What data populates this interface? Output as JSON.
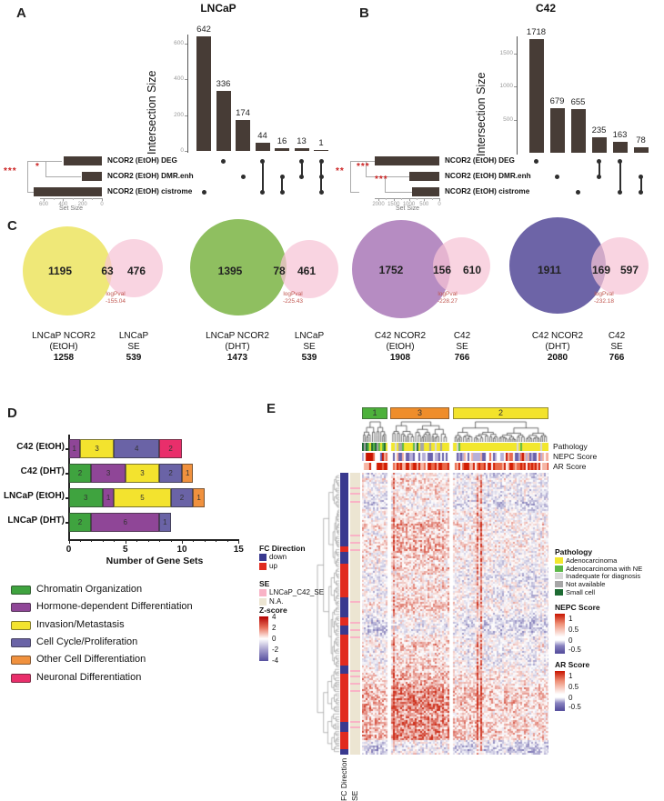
{
  "chart_data": [
    {
      "type": "upset",
      "panel": "A",
      "title": "LNCaP",
      "ylabel": "Intersection Size",
      "yticks": [
        0,
        200,
        400,
        600
      ],
      "set_axis_label": "Set Size",
      "set_axis_ticks": [
        600,
        400,
        200,
        0
      ],
      "sets": [
        {
          "name": "NCOR2 (EtOH) DEG",
          "size": 394
        },
        {
          "name": "NCOR2 (EtOH) DMR.enh",
          "size": 204
        },
        {
          "name": "NCOR2 (EtOH) cistrome",
          "size": 703
        }
      ],
      "intersections": [
        {
          "sets": [
            2
          ],
          "size": 642
        },
        {
          "sets": [
            0
          ],
          "size": 336
        },
        {
          "sets": [
            1
          ],
          "size": 174
        },
        {
          "sets": [
            0,
            2
          ],
          "size": 44
        },
        {
          "sets": [
            1,
            2
          ],
          "size": 16
        },
        {
          "sets": [
            0,
            1
          ],
          "size": 13
        },
        {
          "sets": [
            0,
            1,
            2
          ],
          "size": 1
        }
      ],
      "significance": [
        "***",
        "*"
      ]
    },
    {
      "type": "upset",
      "panel": "B",
      "title": "C42",
      "ylabel": "Intersection Size",
      "yticks": [
        500,
        1000,
        1500
      ],
      "set_axis_label": "Set Size",
      "set_axis_ticks": [
        2000,
        1500,
        1000,
        500,
        0
      ],
      "sets": [
        {
          "name": "NCOR2 (EtOH) DEG",
          "size": 2116
        },
        {
          "name": "NCOR2 (EtOH) DMR.enh",
          "size": 992
        },
        {
          "name": "NCOR2 (EtOH) cistrome",
          "size": 896
        }
      ],
      "intersections": [
        {
          "sets": [
            0
          ],
          "size": 1718
        },
        {
          "sets": [
            1
          ],
          "size": 679
        },
        {
          "sets": [
            2
          ],
          "size": 655
        },
        {
          "sets": [
            0,
            1
          ],
          "size": 235
        },
        {
          "sets": [
            0,
            2
          ],
          "size": 163
        },
        {
          "sets": [
            1,
            2
          ],
          "size": 78
        }
      ],
      "significance": [
        "**",
        "***",
        "***"
      ]
    },
    {
      "type": "venn",
      "panel": "C",
      "right_color": "#f6c3d5",
      "logpval_title": "logPval",
      "diagrams": [
        {
          "left_label": [
            "LNCaP NCOR2",
            "(EtOH)"
          ],
          "left_total": "1258",
          "right_label": [
            "LNCaP",
            "SE"
          ],
          "right_total": "539",
          "left_only": "1195",
          "overlap": "63",
          "right_only": "476",
          "logpval": "-155.04",
          "left_color": "#efe878"
        },
        {
          "left_label": [
            "LNCaP NCOR2",
            "(DHT)"
          ],
          "left_total": "1473",
          "right_label": [
            "LNCaP",
            "SE"
          ],
          "right_total": "539",
          "left_only": "1395",
          "overlap": "78",
          "right_only": "461",
          "logpval": "-225.43",
          "left_color": "#8fbf60"
        },
        {
          "left_label": [
            "C42 NCOR2",
            "(EtOH)"
          ],
          "left_total": "1908",
          "right_label": [
            "C42",
            "SE"
          ],
          "right_total": "766",
          "left_only": "1752",
          "overlap": "156",
          "right_only": "610",
          "logpval": "-228.27",
          "left_color": "#b68cc2"
        },
        {
          "left_label": [
            "C42 NCOR2",
            "(DHT)"
          ],
          "left_total": "2080",
          "right_label": [
            "C42",
            "SE"
          ],
          "right_total": "766",
          "left_only": "1911",
          "overlap": "169",
          "right_only": "597",
          "logpval": "-232.18",
          "left_color": "#6d64a7"
        }
      ]
    },
    {
      "type": "stacked_bar",
      "panel": "D",
      "xlabel": "Number of Gene Sets",
      "xticks": [
        0,
        5,
        10,
        15
      ],
      "xmax": 15,
      "legend": [
        {
          "label": "Chromatin Organization",
          "color": "#3fa33f"
        },
        {
          "label": "Hormone-dependent Differentiation",
          "color": "#8f4697"
        },
        {
          "label": "Invasion/Metastasis",
          "color": "#f3e32e"
        },
        {
          "label": "Cell Cycle/Proliferation",
          "color": "#6a63a6"
        },
        {
          "label": "Other Cell Differentiation",
          "color": "#f0913e"
        },
        {
          "label": "Neuronal Differentiation",
          "color": "#e92e6b"
        }
      ],
      "bars": [
        {
          "category": "C42 (EtOH)",
          "segments": [
            [
              1,
              1
            ],
            [
              2,
              3
            ],
            [
              3,
              4
            ],
            [
              5,
              2
            ]
          ]
        },
        {
          "category": "C42 (DHT)",
          "segments": [
            [
              0,
              2
            ],
            [
              1,
              3
            ],
            [
              2,
              3
            ],
            [
              3,
              2
            ],
            [
              4,
              1
            ]
          ]
        },
        {
          "category": "LNCaP (EtOH)",
          "segments": [
            [
              0,
              3
            ],
            [
              1,
              1
            ],
            [
              2,
              5
            ],
            [
              3,
              2
            ],
            [
              4,
              1
            ]
          ]
        },
        {
          "category": "LNCaP (DHT)",
          "segments": [
            [
              0,
              2
            ],
            [
              1,
              6
            ],
            [
              3,
              1
            ]
          ]
        }
      ]
    },
    {
      "type": "heatmap",
      "panel": "E",
      "clusters": [
        {
          "id": "1",
          "color": "#4db13b"
        },
        {
          "id": "3",
          "color": "#ef8d2a"
        },
        {
          "id": "2",
          "color": "#f3e32b"
        }
      ],
      "col_annotation_labels": [
        "Pathology",
        "NEPC Score",
        "AR Score"
      ],
      "row_annotation_labels": [
        "FC Direction",
        "SE"
      ],
      "fc_segments": [
        [
          "down",
          0.26
        ],
        [
          "up",
          0.02
        ],
        [
          "down",
          0.04
        ],
        [
          "up",
          0.12
        ],
        [
          "down",
          0.07
        ],
        [
          "up",
          0.03
        ],
        [
          "down",
          0.03
        ],
        [
          "up",
          0.11
        ],
        [
          "down",
          0.03
        ],
        [
          "up",
          0.17
        ],
        [
          "down",
          0.035
        ],
        [
          "up",
          0.06
        ],
        [
          "down",
          0.02
        ]
      ],
      "se_marks": [
        0.05,
        0.07,
        0.1,
        0.22,
        0.245,
        0.27,
        0.455,
        0.53,
        0.555,
        0.58,
        0.7,
        0.72,
        0.745,
        0.77,
        0.88,
        0.9
      ],
      "legends": {
        "fc": {
          "title": "FC Direction",
          "items": [
            {
              "label": "down",
              "color": "#39398f"
            },
            {
              "label": "up",
              "color": "#e12b20"
            }
          ]
        },
        "se": {
          "title": "SE",
          "items": [
            {
              "label": "LNCaP_C42_SE",
              "color": "#f9b3c6"
            },
            {
              "label": "N.A.",
              "color": "#ece5d2"
            }
          ]
        },
        "zscore": {
          "title": "Z-score",
          "ticks": [
            "4",
            "2",
            "0",
            "-2",
            "-4"
          ]
        },
        "pathology": {
          "title": "Pathology",
          "items": [
            {
              "label": "Adenocarcinoma",
              "color": "#f2e72e"
            },
            {
              "label": "Adenocarcinoma with NE",
              "color": "#5cb848"
            },
            {
              "label": "Inadequate for diagnosis",
              "color": "#d9d9d9"
            },
            {
              "label": "Not available",
              "color": "#a6a6a6"
            },
            {
              "label": "Small cell",
              "color": "#1d6b33"
            }
          ]
        },
        "nepc": {
          "title": "NEPC Score",
          "ticks": [
            "1",
            "0.5",
            "0",
            "-0.5"
          ]
        },
        "ar": {
          "title": "AR Score",
          "ticks": [
            "1",
            "0.5",
            "0",
            "-0.5"
          ]
        }
      }
    }
  ]
}
